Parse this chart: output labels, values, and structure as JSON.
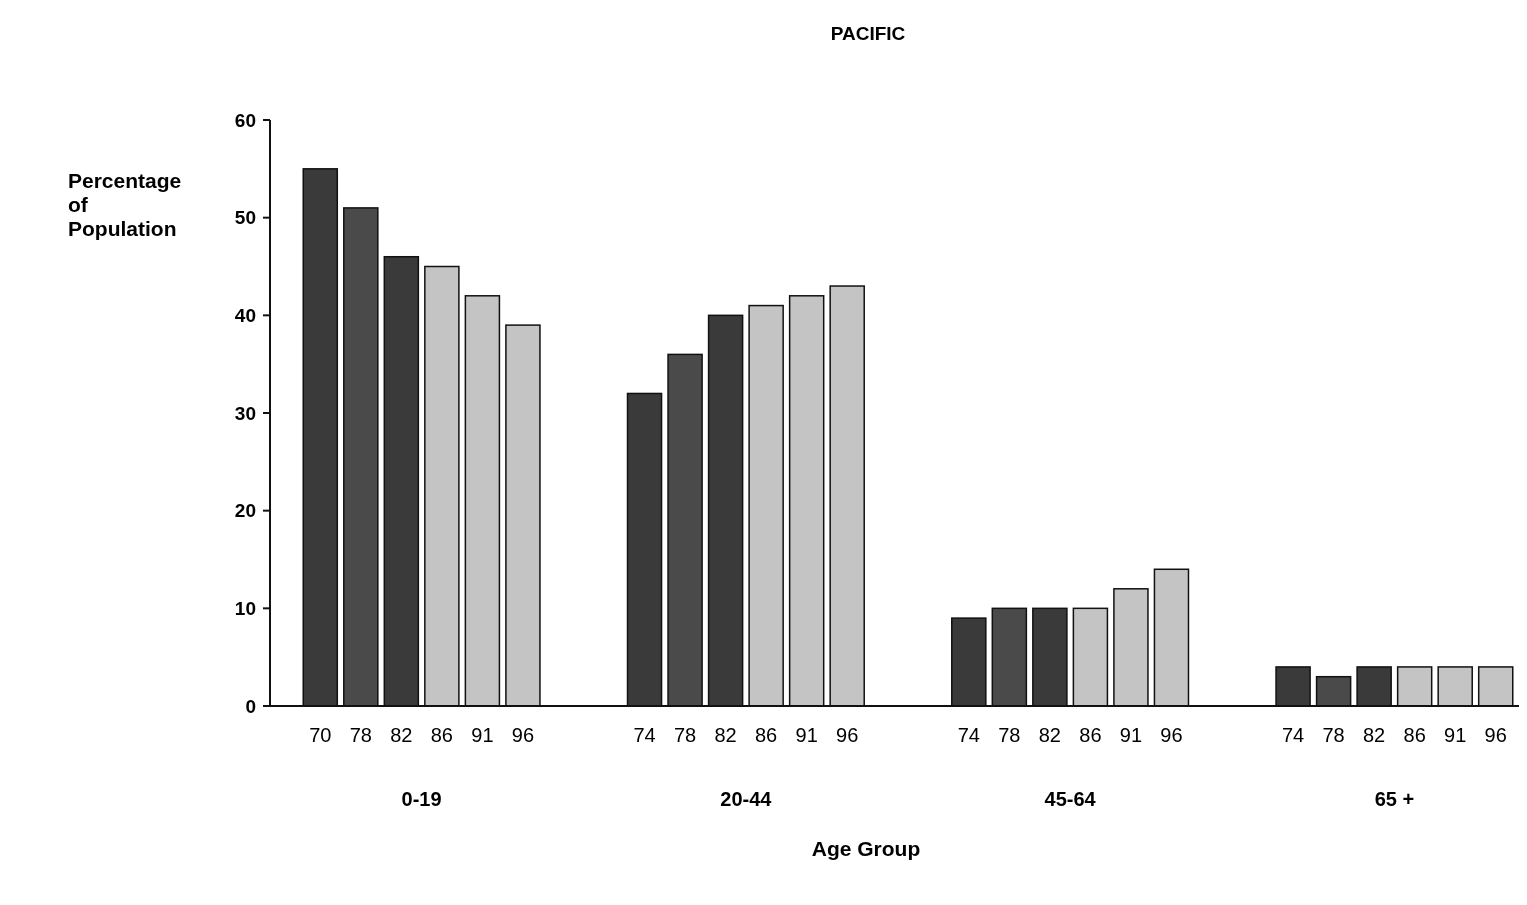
{
  "chart_data": {
    "type": "bar",
    "title": "PACIFIC",
    "xlabel": "Age Group",
    "ylabel": "Percentage of Population",
    "categories": [
      "70",
      "78",
      "82",
      "86",
      "91",
      "96",
      null,
      null,
      "74",
      "78",
      "82",
      "86",
      "91",
      "96",
      null,
      null,
      "74",
      "78",
      "82",
      "86",
      "91",
      "96",
      null,
      null,
      "74",
      "78",
      "82",
      "86",
      "91",
      "96"
    ],
    "values": [
      55,
      51,
      46,
      45,
      42,
      39,
      null,
      null,
      32,
      36,
      40,
      41,
      42,
      43,
      null,
      null,
      9,
      10,
      10,
      10,
      12,
      14,
      null,
      null,
      4,
      3,
      4,
      4,
      4,
      4
    ],
    "colors": [
      "#3a3a3a",
      "#4a4a4a",
      "#3a3a3a",
      "#c4c4c4",
      "#c4c4c4",
      "#c4c4c4",
      null,
      null,
      "#3a3a3a",
      "#4a4a4a",
      "#3a3a3a",
      "#c4c4c4",
      "#c4c4c4",
      "#c4c4c4",
      null,
      null,
      "#3a3a3a",
      "#4a4a4a",
      "#3a3a3a",
      "#c4c4c4",
      "#c4c4c4",
      "#c4c4c4",
      null,
      null,
      "#3a3a3a",
      "#4a4a4a",
      "#3a3a3a",
      "#c4c4c4",
      "#c4c4c4",
      "#c4c4c4"
    ],
    "annotations": [
      "0-19",
      "20-44",
      "45-64",
      "65 +"
    ],
    "ylim": [
      0,
      60
    ],
    "yticks": [
      0,
      10,
      20,
      30,
      40,
      50,
      60
    ],
    "grid": false
  }
}
